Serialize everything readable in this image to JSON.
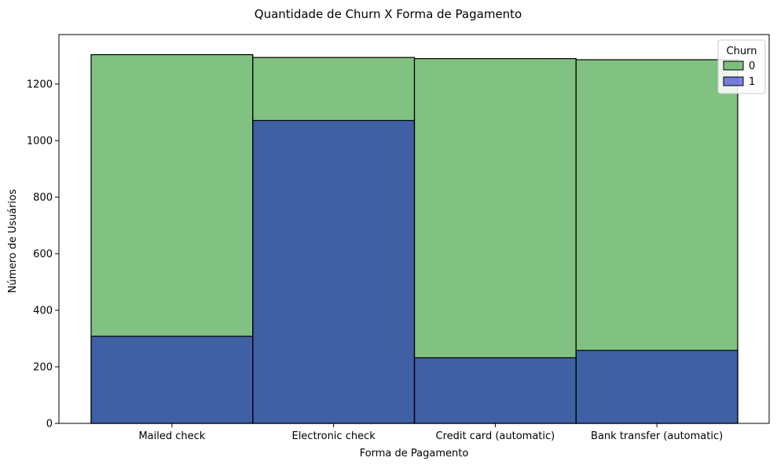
{
  "chart_data": {
    "type": "bar",
    "title": "Quantidade de Churn X Forma de Pagamento",
    "xlabel": "Forma de Pagamento",
    "ylabel": "Número de Usuários",
    "categories": [
      "Mailed check",
      "Electronic check",
      "Credit card (automatic)",
      "Bank transfer (automatic)"
    ],
    "series": [
      {
        "name": "0",
        "values": [
          1304,
          1294,
          1290,
          1286
        ],
        "color": "#4ca64c",
        "opacity": 0.7
      },
      {
        "name": "1",
        "values": [
          308,
          1071,
          232,
          258
        ],
        "color": "#0000cc",
        "opacity": 0.5
      }
    ],
    "overlay": true,
    "ylim": [
      0,
      1375
    ],
    "yticks": [
      0,
      200,
      400,
      600,
      800,
      1000,
      1200
    ],
    "grid": false,
    "legend": {
      "title": "Churn",
      "position": "top-right"
    },
    "colors": {
      "bar_edge": "#000000",
      "axis": "#000000",
      "legend_border": "#cccccc"
    }
  }
}
